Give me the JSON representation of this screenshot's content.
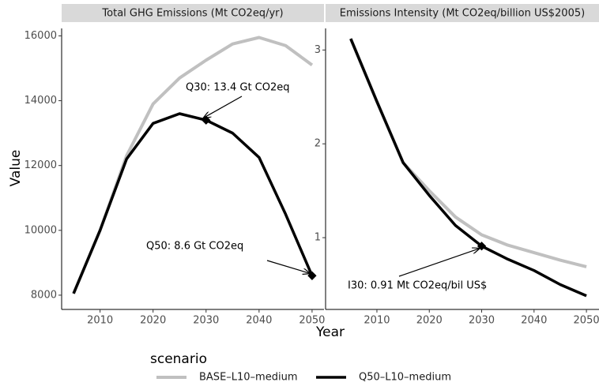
{
  "chart_data": [
    {
      "type": "line",
      "title": "Total GHG Emissions (Mt CO2eq/yr)",
      "x": [
        2005,
        2010,
        2015,
        2020,
        2025,
        2030,
        2035,
        2040,
        2045,
        2050
      ],
      "series": [
        {
          "name": "BASE–L10–medium",
          "color": "#c0c0c0",
          "values": [
            8050,
            10000,
            12300,
            13900,
            14700,
            15250,
            15750,
            15950,
            15700,
            15100
          ]
        },
        {
          "name": "Q50–L10–medium",
          "color": "#000000",
          "values": [
            8050,
            10000,
            12200,
            13300,
            13600,
            13400,
            13000,
            12250,
            10500,
            8600
          ]
        }
      ],
      "xlim": [
        2002.75,
        2052.25
      ],
      "xticks": [
        2010,
        2020,
        2030,
        2040,
        2050
      ],
      "ylim": [
        7560,
        16230
      ],
      "yticks": [
        8000,
        10000,
        12000,
        14000,
        16000
      ],
      "annotations": [
        {
          "text": "Q30: 13.4 Gt CO2eq"
        },
        {
          "text": "Q50: 8.6 Gt CO2eq"
        }
      ]
    },
    {
      "type": "line",
      "title": "Emissions Intensity (Mt CO2eq/billion US$2005)",
      "x": [
        2005,
        2010,
        2015,
        2020,
        2025,
        2030,
        2035,
        2040,
        2045,
        2050
      ],
      "series": [
        {
          "color": "#c0c0c0",
          "values": [
            3.12,
            2.45,
            1.8,
            1.5,
            1.22,
            1.03,
            0.92,
            0.84,
            0.76,
            0.69
          ]
        },
        {
          "color": "#000000",
          "values": [
            3.12,
            2.45,
            1.8,
            1.45,
            1.13,
            0.91,
            0.77,
            0.65,
            0.5,
            0.38
          ]
        }
      ],
      "xlim": [
        2000.2,
        2052.4
      ],
      "xticks": [
        2010,
        2020,
        2030,
        2040,
        2050
      ],
      "ylim": [
        0.235,
        3.23
      ],
      "yticks": [
        1,
        2,
        3
      ],
      "annotations": [
        {
          "text": "I30: 0.91 Mt CO2eq/bil US$"
        }
      ]
    }
  ],
  "xlabel": "Year",
  "ylabel": "Value",
  "legend_title": "scenario"
}
